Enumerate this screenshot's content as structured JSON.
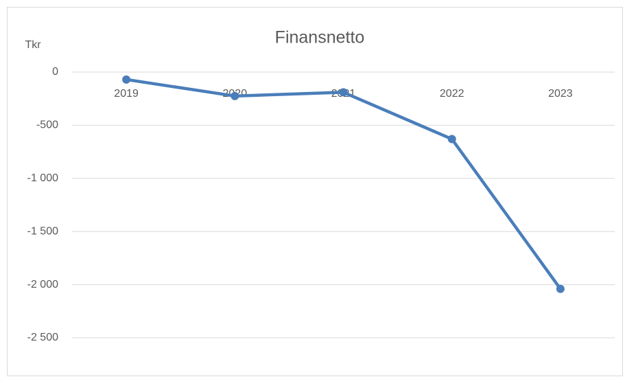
{
  "chart_data": {
    "type": "line",
    "title": "Finansnetto",
    "y_label": "Tkr",
    "categories": [
      "2019",
      "2020",
      "2021",
      "2022",
      "2023"
    ],
    "series": [
      {
        "name": "Finansnetto",
        "color": "#4a7ebb",
        "values": [
          -70,
          -225,
          -190,
          -630,
          -2040
        ]
      }
    ],
    "ylim": [
      -2500,
      0
    ],
    "yticks": [
      0,
      -500,
      {
        "value": -1000,
        "label": "-1 000"
      },
      {
        "value": -1500,
        "label": "-1 500"
      },
      {
        "value": -2000,
        "label": "-2 000"
      },
      {
        "value": -2500,
        "label": "-2 500"
      }
    ],
    "grid": true
  }
}
